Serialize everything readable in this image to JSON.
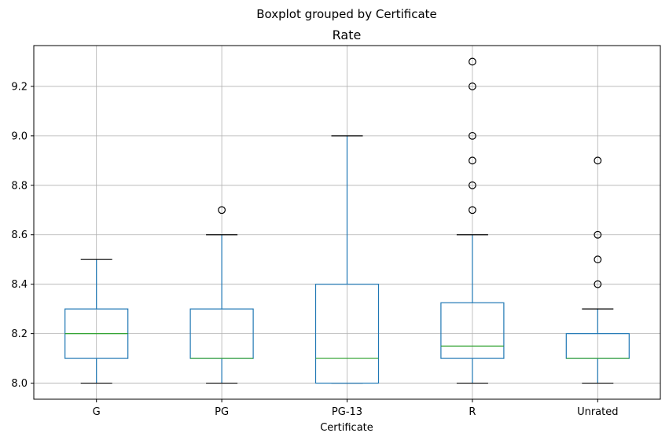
{
  "chart_data": {
    "type": "box",
    "suptitle": "Boxplot grouped by Certificate",
    "title": "Rate",
    "xlabel": "Certificate",
    "ylabel": "",
    "ylim": [
      7.935,
      9.365
    ],
    "yticks": [
      "8.0",
      "8.2",
      "8.4",
      "8.6",
      "8.8",
      "9.0",
      "9.2"
    ],
    "ytick_values": [
      8.0,
      8.2,
      8.4,
      8.6,
      8.8,
      9.0,
      9.2
    ],
    "grid": true,
    "categories": [
      "G",
      "PG",
      "PG-13",
      "R",
      "Unrated"
    ],
    "boxes": [
      {
        "category": "G",
        "whisker_low": 8.0,
        "q1": 8.1,
        "median": 8.2,
        "q3": 8.3,
        "whisker_high": 8.5,
        "outliers": []
      },
      {
        "category": "PG",
        "whisker_low": 8.0,
        "q1": 8.1,
        "median": 8.1,
        "q3": 8.3,
        "whisker_high": 8.6,
        "outliers": [
          8.7
        ]
      },
      {
        "category": "PG-13",
        "whisker_low": 8.0,
        "q1": 8.0,
        "median": 8.1,
        "q3": 8.4,
        "whisker_high": 9.0,
        "outliers": []
      },
      {
        "category": "R",
        "whisker_low": 8.0,
        "q1": 8.1,
        "median": 8.15,
        "q3": 8.325,
        "whisker_high": 8.6,
        "outliers": [
          8.7,
          8.8,
          8.9,
          9.0,
          9.2,
          9.3
        ]
      },
      {
        "category": "Unrated",
        "whisker_low": 8.0,
        "q1": 8.1,
        "median": 8.1,
        "q3": 8.2,
        "whisker_high": 8.3,
        "outliers": [
          8.4,
          8.5,
          8.6,
          8.9
        ]
      }
    ],
    "colors": {
      "box": "#1f77b4",
      "median": "#2ca02c",
      "whisker_cap": "#000000",
      "grid": "#b0b0b0",
      "outlier": "#000000"
    }
  }
}
